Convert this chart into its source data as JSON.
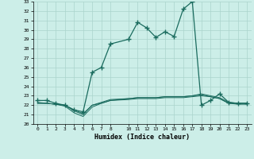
{
  "xlabel": "Humidex (Indice chaleur)",
  "bg_color": "#cceee8",
  "line_color": "#1a6b5e",
  "grid_color": "#aad4cc",
  "xlim": [
    -0.5,
    23.5
  ],
  "ylim": [
    20,
    33
  ],
  "xticks": [
    0,
    1,
    2,
    3,
    4,
    5,
    6,
    7,
    8,
    10,
    11,
    12,
    13,
    14,
    15,
    16,
    17,
    18,
    19,
    20,
    21,
    22,
    23
  ],
  "yticks": [
    20,
    21,
    22,
    23,
    24,
    25,
    26,
    27,
    28,
    29,
    30,
    31,
    32,
    33
  ],
  "series1_x": [
    0,
    1,
    2,
    3,
    4,
    5,
    6,
    7,
    8,
    10,
    11,
    12,
    13,
    14,
    15,
    16,
    17,
    18,
    19,
    20,
    21,
    22,
    23
  ],
  "series1_y": [
    22.5,
    22.5,
    22.2,
    22.0,
    21.5,
    21.3,
    25.5,
    26.0,
    28.5,
    29.0,
    30.8,
    30.2,
    29.2,
    29.8,
    29.3,
    32.2,
    33.0,
    22.0,
    22.5,
    23.2,
    22.3,
    22.2,
    22.2
  ],
  "series2_x": [
    0,
    1,
    2,
    3,
    4,
    5,
    6,
    7,
    8,
    10,
    11,
    12,
    13,
    14,
    15,
    16,
    17,
    18,
    19,
    20,
    21,
    22,
    23
  ],
  "series2_y": [
    22.3,
    22.2,
    22.1,
    22.0,
    21.4,
    21.0,
    22.0,
    22.3,
    22.6,
    22.7,
    22.8,
    22.8,
    22.8,
    22.9,
    22.9,
    22.9,
    23.0,
    23.2,
    23.0,
    22.8,
    22.3,
    22.2,
    22.2
  ],
  "series3_x": [
    0,
    1,
    2,
    3,
    4,
    5,
    6,
    7,
    8,
    10,
    11,
    12,
    13,
    14,
    15,
    16,
    17,
    18,
    19,
    20,
    21,
    22,
    23
  ],
  "series3_y": [
    22.2,
    22.2,
    22.1,
    21.9,
    21.2,
    20.8,
    21.8,
    22.2,
    22.5,
    22.6,
    22.7,
    22.7,
    22.7,
    22.8,
    22.8,
    22.8,
    22.9,
    23.0,
    22.9,
    22.7,
    22.2,
    22.1,
    22.1
  ],
  "series4_x": [
    0,
    1,
    2,
    3,
    4,
    5,
    6,
    7,
    8,
    10,
    11,
    12,
    13,
    14,
    15,
    16,
    17,
    18,
    19,
    20,
    21,
    22,
    23
  ],
  "series4_y": [
    22.2,
    22.2,
    22.1,
    22.0,
    21.5,
    21.1,
    22.0,
    22.2,
    22.5,
    22.7,
    22.8,
    22.8,
    22.8,
    22.9,
    22.9,
    22.9,
    23.0,
    23.1,
    22.9,
    22.7,
    22.2,
    22.2,
    22.2
  ]
}
